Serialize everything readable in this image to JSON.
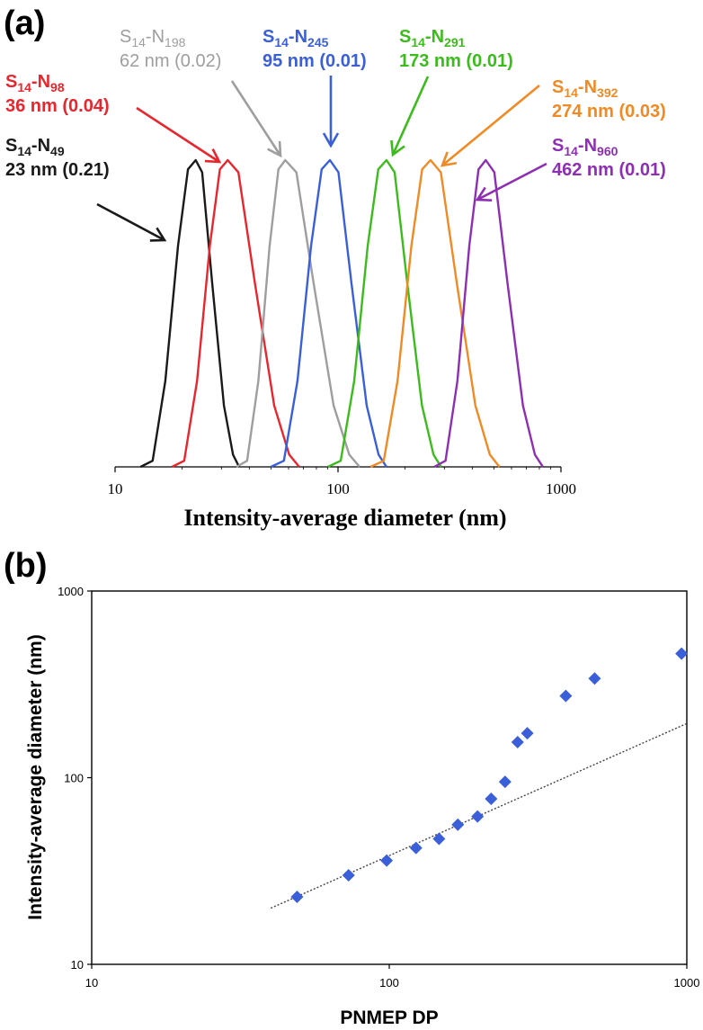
{
  "chart_data": [
    {
      "type": "line",
      "panel_label": "(a)",
      "xlabel": "Intensity-average diameter (nm)",
      "ylabel": "",
      "xscale": "log",
      "xlim": [
        10,
        1000
      ],
      "xticks": [
        "10",
        "100",
        "1000"
      ],
      "grid": false,
      "series": [
        {
          "name": "S14-N49",
          "label_main": "S",
          "label_sub1": "14",
          "label_mid": "-N",
          "label_sub2": "49",
          "size_text": "23 nm (0.21)",
          "color": "#1a1a1a",
          "peak_nm": 23,
          "min_nm": 13,
          "max_nm": 36
        },
        {
          "name": "S14-N98",
          "label_main": "S",
          "label_sub1": "14",
          "label_mid": "-N",
          "label_sub2": "98",
          "size_text": "36 nm (0.04)",
          "color": "#e8262e",
          "peak_nm": 32,
          "min_nm": 18,
          "max_nm": 67
        },
        {
          "name": "S14-N198",
          "label_main": "S",
          "label_sub1": "14",
          "label_mid": "-N",
          "label_sub2": "198",
          "size_text": "62 nm (0.02)",
          "color": "#9e9e9e",
          "peak_nm": 58,
          "min_nm": 35,
          "max_nm": 125
        },
        {
          "name": "S14-N245",
          "label_main": "S",
          "label_sub1": "14",
          "label_mid": "-N",
          "label_sub2": "245",
          "size_text": "95 nm (0.01)",
          "color": "#3a5fd9",
          "peak_nm": 92,
          "min_nm": 50,
          "max_nm": 165
        },
        {
          "name": "S14-N291",
          "label_main": "S",
          "label_sub1": "14",
          "label_mid": "-N",
          "label_sub2": "291",
          "size_text": "173 nm (0.01)",
          "color": "#3cbc1c",
          "peak_nm": 165,
          "min_nm": 90,
          "max_nm": 290
        },
        {
          "name": "S14-N392",
          "label_main": "S",
          "label_sub1": "14",
          "label_mid": "-N",
          "label_sub2": "392",
          "size_text": "274 nm (0.03)",
          "color": "#f08a24",
          "peak_nm": 260,
          "min_nm": 140,
          "max_nm": 530
        },
        {
          "name": "S14-N960",
          "label_main": "S",
          "label_sub1": "14",
          "label_mid": "-N",
          "label_sub2": "960",
          "size_text": "462 nm (0.01)",
          "color": "#8e2fb3",
          "peak_nm": 460,
          "min_nm": 270,
          "max_nm": 830
        }
      ]
    },
    {
      "type": "scatter",
      "panel_label": "(b)",
      "xlabel": "PNMEP DP",
      "ylabel": "Intensity-average diameter (nm)",
      "xscale": "log",
      "yscale": "log",
      "xlim": [
        10,
        1000
      ],
      "ylim": [
        10,
        1000
      ],
      "xticks": [
        "10",
        "100",
        "1000"
      ],
      "yticks": [
        "10",
        "100",
        "1000"
      ],
      "grid": false,
      "marker_color": "#3a5fd9",
      "points": [
        {
          "x": 49,
          "y": 23
        },
        {
          "x": 73,
          "y": 30
        },
        {
          "x": 98,
          "y": 36
        },
        {
          "x": 123,
          "y": 42
        },
        {
          "x": 147,
          "y": 47
        },
        {
          "x": 170,
          "y": 56
        },
        {
          "x": 198,
          "y": 62
        },
        {
          "x": 220,
          "y": 77
        },
        {
          "x": 245,
          "y": 95
        },
        {
          "x": 270,
          "y": 155
        },
        {
          "x": 291,
          "y": 173
        },
        {
          "x": 392,
          "y": 274
        },
        {
          "x": 490,
          "y": 340
        },
        {
          "x": 960,
          "y": 462
        }
      ],
      "trendline": {
        "style": "dotted",
        "color": "#444444",
        "x_start": 40,
        "x_end": 1000,
        "y_start": 20,
        "y_end": 195
      }
    }
  ]
}
